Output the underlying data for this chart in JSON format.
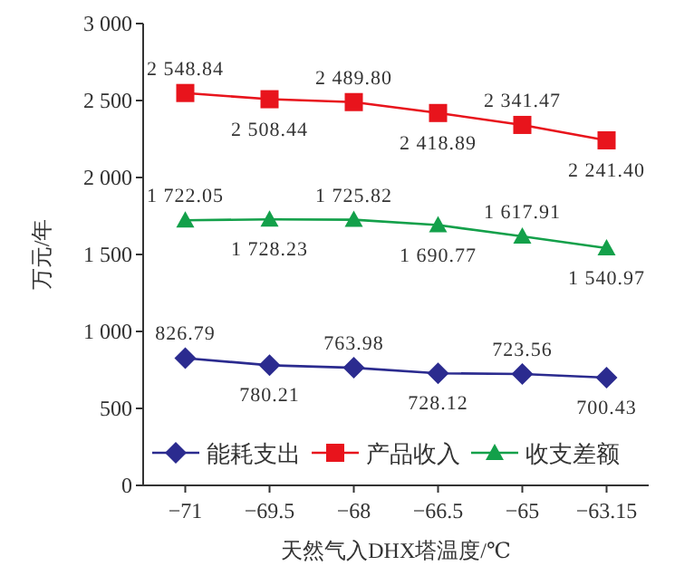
{
  "chart_data": {
    "type": "line",
    "xlabel": "天然气入DHX塔温度/℃",
    "ylabel": "万元/年",
    "categories": [
      "−71",
      "−69.5",
      "−68",
      "−66.5",
      "−65",
      "−63.15"
    ],
    "series": [
      {
        "name": "能耗支出",
        "color": "#2b2b8f",
        "marker": "diamond",
        "values": [
          826.79,
          780.21,
          763.98,
          728.12,
          723.56,
          700.43
        ],
        "value_labels": [
          "826.79",
          "780.21",
          "763.98",
          "728.12",
          "723.56",
          "700.43"
        ]
      },
      {
        "name": "产品收入",
        "color": "#e8141c",
        "marker": "square",
        "values": [
          2548.84,
          2508.44,
          2489.8,
          2418.89,
          2341.47,
          2241.4
        ],
        "value_labels": [
          "2 548.84",
          "2 508.44",
          "2 489.80",
          "2 418.89",
          "2 341.47",
          "2 241.40"
        ]
      },
      {
        "name": "收支差额",
        "color": "#13a04a",
        "marker": "triangle",
        "values": [
          1722.05,
          1728.23,
          1725.82,
          1690.77,
          1617.91,
          1540.97
        ],
        "value_labels": [
          "1 722.05",
          "1 728.23",
          "1 725.82",
          "1 690.77",
          "1 617.91",
          "1 540.97"
        ]
      }
    ],
    "ylim": [
      0,
      3000
    ],
    "yticks": [
      0,
      {
        "value": 500,
        "label": "500"
      },
      {
        "value": 1000,
        "label": "1 000"
      },
      {
        "value": 1500,
        "label": "1 500"
      },
      {
        "value": 2000,
        "label": "2 000"
      },
      {
        "value": 2500,
        "label": "2 500"
      },
      {
        "value": 3000,
        "label": "3 000"
      }
    ],
    "legend": "bottom",
    "grid": false
  }
}
